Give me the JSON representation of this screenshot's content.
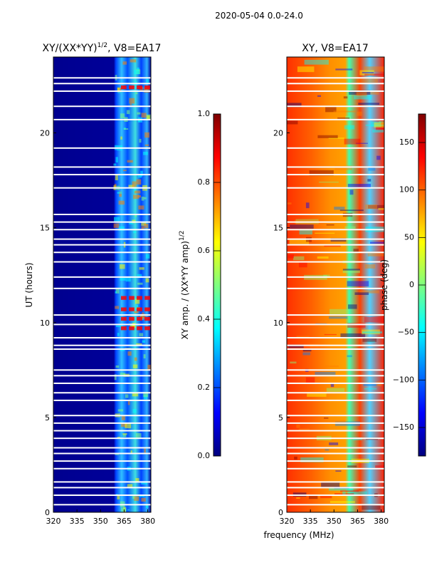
{
  "suptitle": "2020-05-04 0.0-24.0",
  "xlabel_shared": "frequency (MHz)",
  "colors": {
    "jet": [
      "#00007f",
      "#0000ff",
      "#007fff",
      "#00ffff",
      "#7fff7f",
      "#ffff00",
      "#ff7f00",
      "#ff0000",
      "#7f0000"
    ],
    "gap": "#ffffff",
    "frame": "#000000"
  },
  "chart_data": [
    {
      "type": "heatmap",
      "name": "xy-normalized-amplitude",
      "title_main": "XY/(XX*YY)",
      "title_sup": "1/2",
      "title_suffix": ", V8=EA17",
      "xlabel": "",
      "ylabel": "UT (hours)",
      "xlim": [
        320,
        382
      ],
      "ylim": [
        0,
        24
      ],
      "xticks": [
        320,
        335,
        350,
        365,
        380
      ],
      "yticks": [
        0,
        5,
        10,
        15,
        20
      ],
      "gap_hours": [
        22.9,
        22.6,
        22.2,
        21.4,
        20.7,
        19.2,
        18.2,
        17.8,
        17.1,
        15.7,
        15.3,
        14.9,
        14.4,
        14.1,
        13.7,
        13.2,
        12.4,
        11.8,
        10.4,
        9.9,
        9.2,
        8.8,
        8.6,
        7.5,
        7.2,
        6.8,
        6.3,
        5.9,
        5.1,
        4.7,
        4.3,
        3.9,
        3.4,
        3.1,
        2.7,
        2.3,
        1.6,
        1.3,
        0.9,
        0.4
      ],
      "colorbar": {
        "label_main": "XY amp. / (XX*YY amp)",
        "label_sup": "1/2",
        "range": [
          0.0,
          1.0
        ],
        "ticks": [
          "0.0",
          "0.2",
          "0.4",
          "0.6",
          "0.8",
          "1.0"
        ]
      }
    },
    {
      "type": "heatmap",
      "name": "xy-phase",
      "title_main": "XY, V8=EA17",
      "xlabel": "frequency (MHz)",
      "ylabel": "",
      "xlim": [
        320,
        382
      ],
      "ylim": [
        0,
        24
      ],
      "xticks": [
        320,
        335,
        350,
        365,
        380
      ],
      "yticks": [
        0,
        5,
        10,
        15,
        20
      ],
      "gap_hours": [
        22.9,
        22.6,
        22.2,
        21.4,
        20.7,
        19.2,
        18.2,
        17.8,
        17.1,
        15.7,
        15.3,
        14.9,
        14.4,
        14.1,
        13.7,
        13.2,
        12.4,
        11.8,
        10.4,
        9.9,
        9.2,
        8.8,
        8.6,
        7.5,
        7.2,
        6.8,
        6.3,
        5.9,
        5.1,
        4.7,
        4.3,
        3.9,
        3.4,
        3.1,
        2.7,
        2.3,
        1.6,
        1.3,
        0.9,
        0.4
      ],
      "colorbar": {
        "label_main": "phase (deg)",
        "range": [
          -180,
          180
        ],
        "ticks": [
          "150",
          "100",
          "50",
          "0",
          "−50",
          "−100",
          "−150"
        ]
      }
    }
  ]
}
